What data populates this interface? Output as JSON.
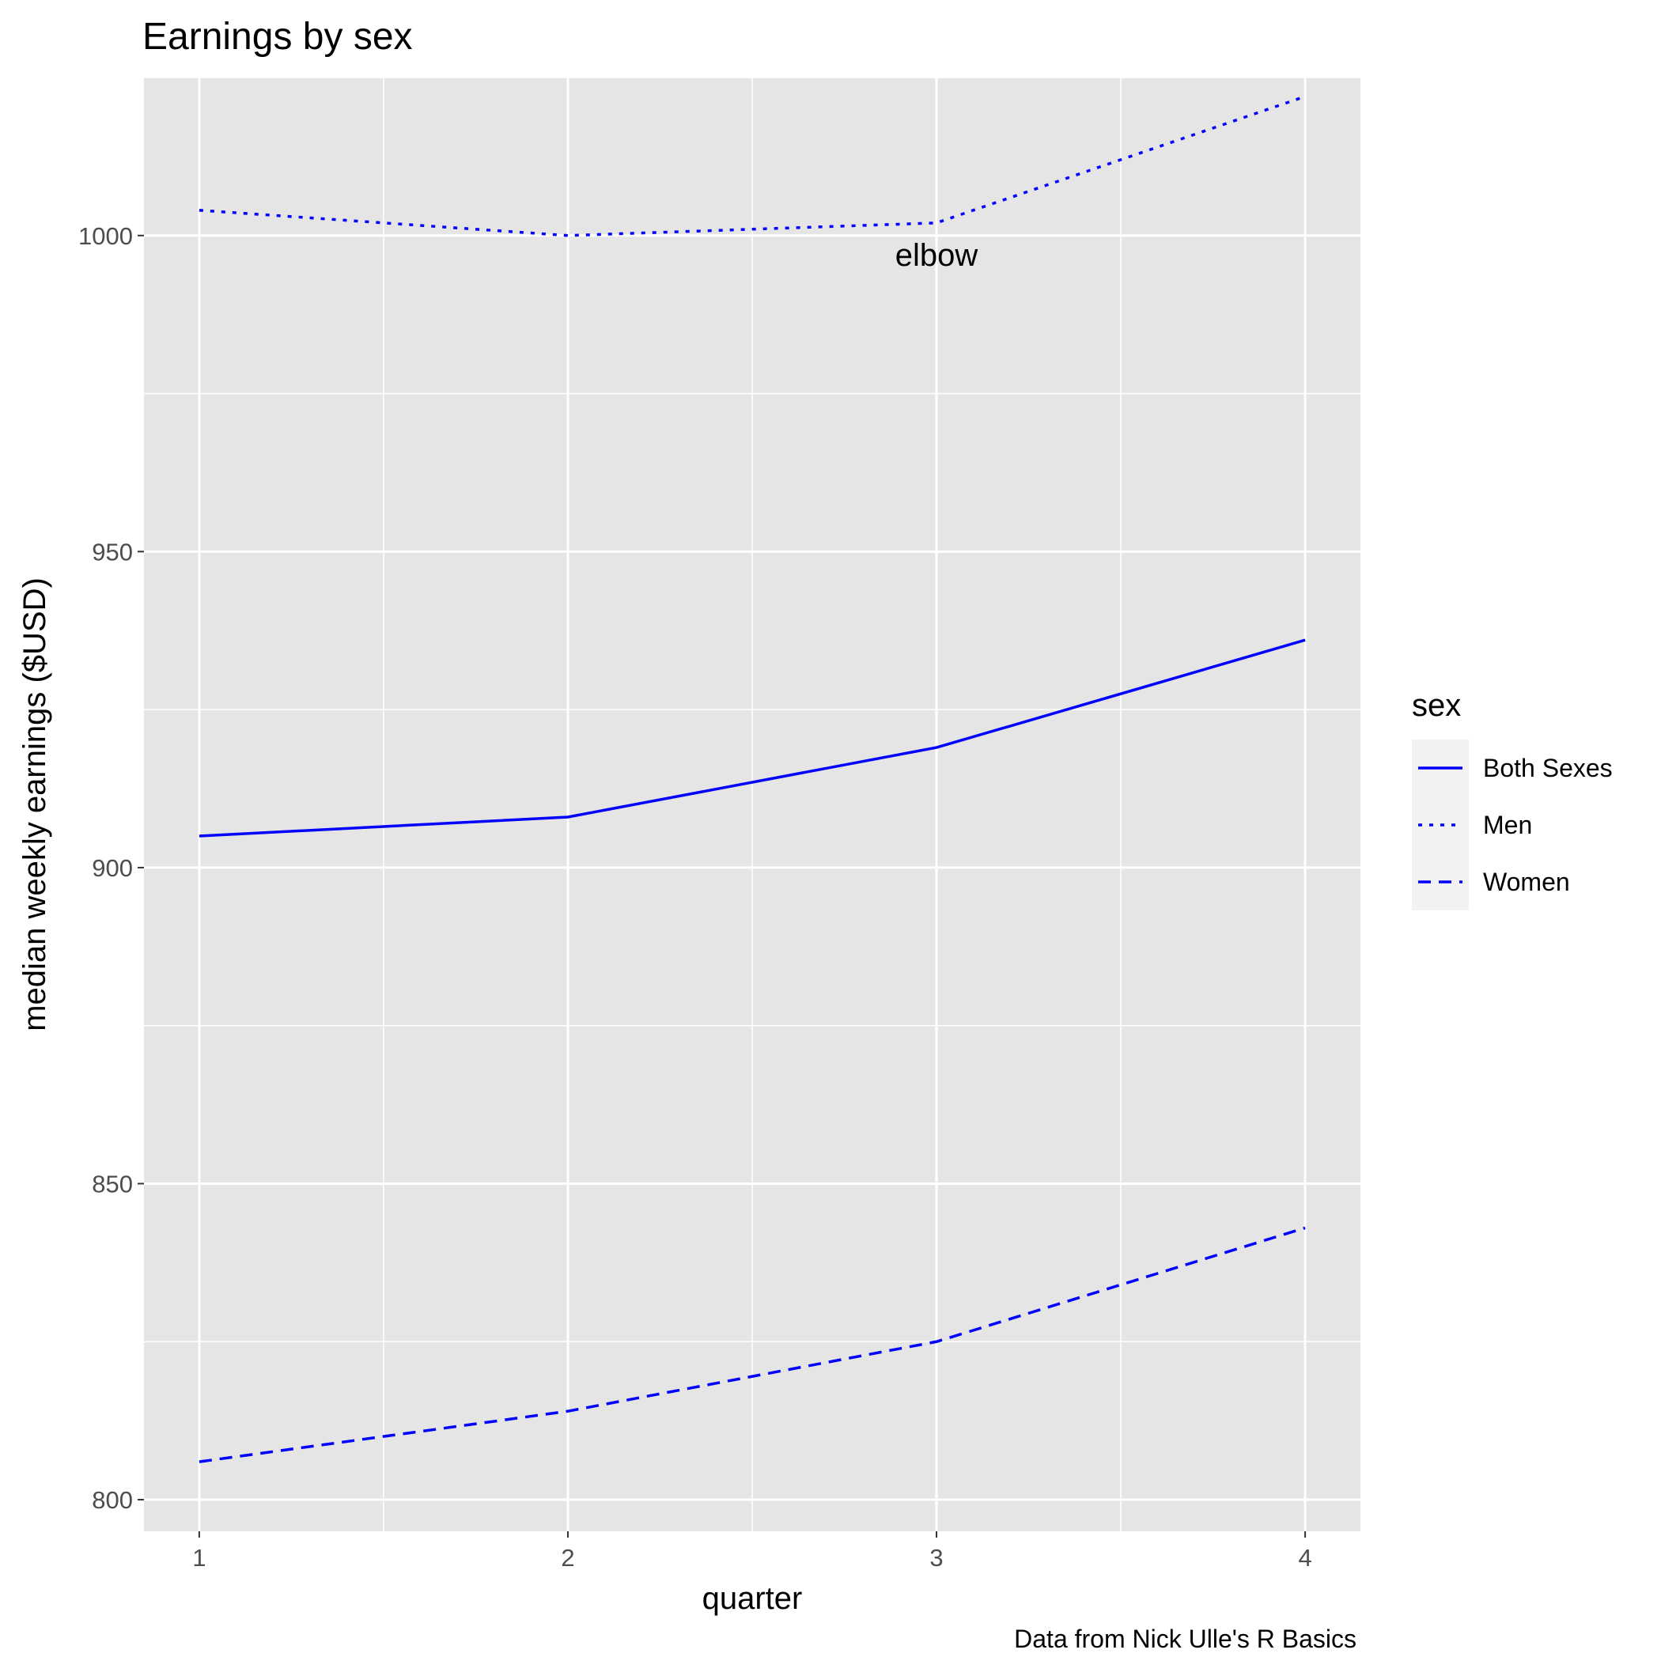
{
  "chart_data": {
    "type": "line",
    "title": "Earnings by sex",
    "xlabel": "quarter",
    "ylabel": "median weekly earnings ($USD)",
    "caption": "Data from Nick Ulle's R Basics",
    "x": [
      1,
      2,
      3,
      4
    ],
    "x_ticks": [
      "1",
      "2",
      "3",
      "4"
    ],
    "y_ticks": [
      "800",
      "850",
      "900",
      "950",
      "1000"
    ],
    "xlim": [
      0.85,
      4.15
    ],
    "ylim": [
      795,
      1025
    ],
    "grid": true,
    "series": [
      {
        "name": "Both Sexes",
        "values": [
          905,
          908,
          919,
          936
        ],
        "linetype": "solid"
      },
      {
        "name": "Men",
        "values": [
          1004,
          1000,
          1002,
          1022
        ],
        "linetype": "dotted"
      },
      {
        "name": "Women",
        "values": [
          806,
          814,
          825,
          843
        ],
        "linetype": "dashed"
      }
    ],
    "series_color": "#0000ff",
    "annotation": {
      "text": "elbow",
      "x": 3,
      "y": 997
    },
    "legend": {
      "title": "sex",
      "position": "right"
    },
    "panel_background": "#e5e5e5",
    "grid_color": "#ffffff"
  }
}
